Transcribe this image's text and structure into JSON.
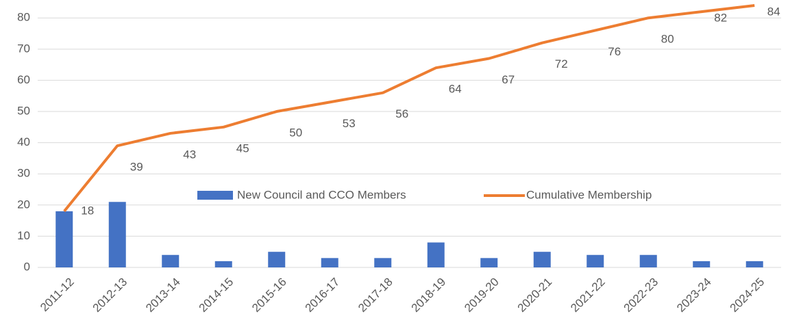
{
  "chart_data": {
    "type": "bar_line",
    "categories": [
      "2011-12",
      "2012-13",
      "2013-14",
      "2014-15",
      "2015-16",
      "2016-17",
      "2017-18",
      "2018-19",
      "2019-20",
      "2020-21",
      "2021-22",
      "2022-23",
      "2023-24",
      "2024-25"
    ],
    "series": [
      {
        "name": "New Council and CCO Members",
        "type": "bar",
        "color": "#4472c4",
        "values": [
          18,
          21,
          4,
          2,
          5,
          3,
          3,
          8,
          3,
          5,
          4,
          4,
          2,
          2
        ]
      },
      {
        "name": "Cumulative Membership",
        "type": "line",
        "color": "#ed7d31",
        "values": [
          18,
          39,
          43,
          45,
          50,
          53,
          56,
          64,
          67,
          72,
          76,
          80,
          82,
          84
        ],
        "data_labels": true
      }
    ],
    "ylim": [
      0,
      84
    ],
    "yticks": [
      0,
      10,
      20,
      30,
      40,
      50,
      60,
      70,
      80
    ],
    "grid": true
  }
}
